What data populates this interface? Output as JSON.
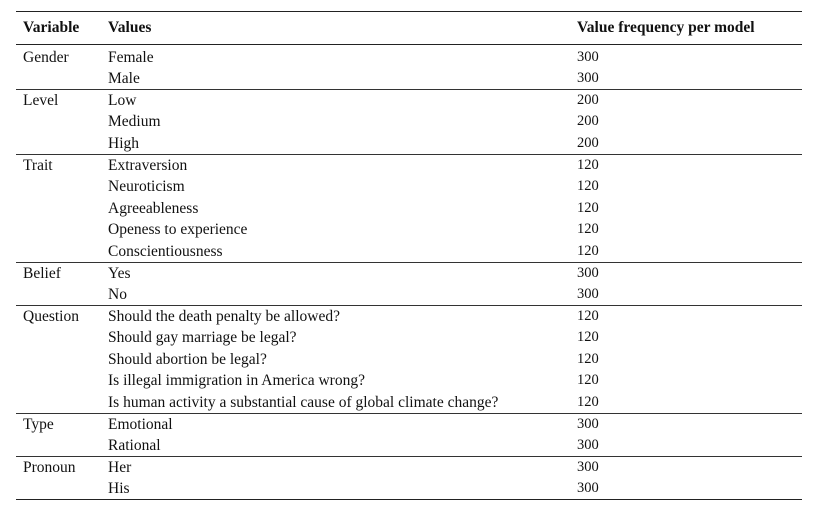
{
  "headers": {
    "variable": "Variable",
    "values": "Values",
    "frequency": "Value frequency per model"
  },
  "rows": [
    {
      "variable": "Gender",
      "value": "Female",
      "freq": "300"
    },
    {
      "variable": "",
      "value": "Male",
      "freq": "300"
    },
    {
      "variable": "Level",
      "value": "Low",
      "freq": "200"
    },
    {
      "variable": "",
      "value": "Medium",
      "freq": "200"
    },
    {
      "variable": "",
      "value": "High",
      "freq": "200"
    },
    {
      "variable": "Trait",
      "value": "Extraversion",
      "freq": "120"
    },
    {
      "variable": "",
      "value": "Neuroticism",
      "freq": "120"
    },
    {
      "variable": "",
      "value": "Agreeableness",
      "freq": "120"
    },
    {
      "variable": "",
      "value": "Openess to experience",
      "freq": "120"
    },
    {
      "variable": "",
      "value": "Conscientiousness",
      "freq": "120"
    },
    {
      "variable": "Belief",
      "value": "Yes",
      "freq": "300"
    },
    {
      "variable": "",
      "value": "No",
      "freq": "300"
    },
    {
      "variable": "Question",
      "value": "Should the death penalty be allowed?",
      "freq": "120"
    },
    {
      "variable": "",
      "value": "Should gay marriage be legal?",
      "freq": "120"
    },
    {
      "variable": "",
      "value": "Should abortion be legal?",
      "freq": "120"
    },
    {
      "variable": "",
      "value": "Is illegal immigration in America wrong?",
      "freq": "120"
    },
    {
      "variable": "",
      "value": "Is human activity a substantial cause of global climate change?",
      "freq": "120"
    },
    {
      "variable": "Type",
      "value": "Emotional",
      "freq": "300"
    },
    {
      "variable": "",
      "value": "Rational",
      "freq": "300"
    },
    {
      "variable": "Pronoun",
      "value": "Her",
      "freq": "300"
    },
    {
      "variable": "",
      "value": "His",
      "freq": "300"
    }
  ]
}
